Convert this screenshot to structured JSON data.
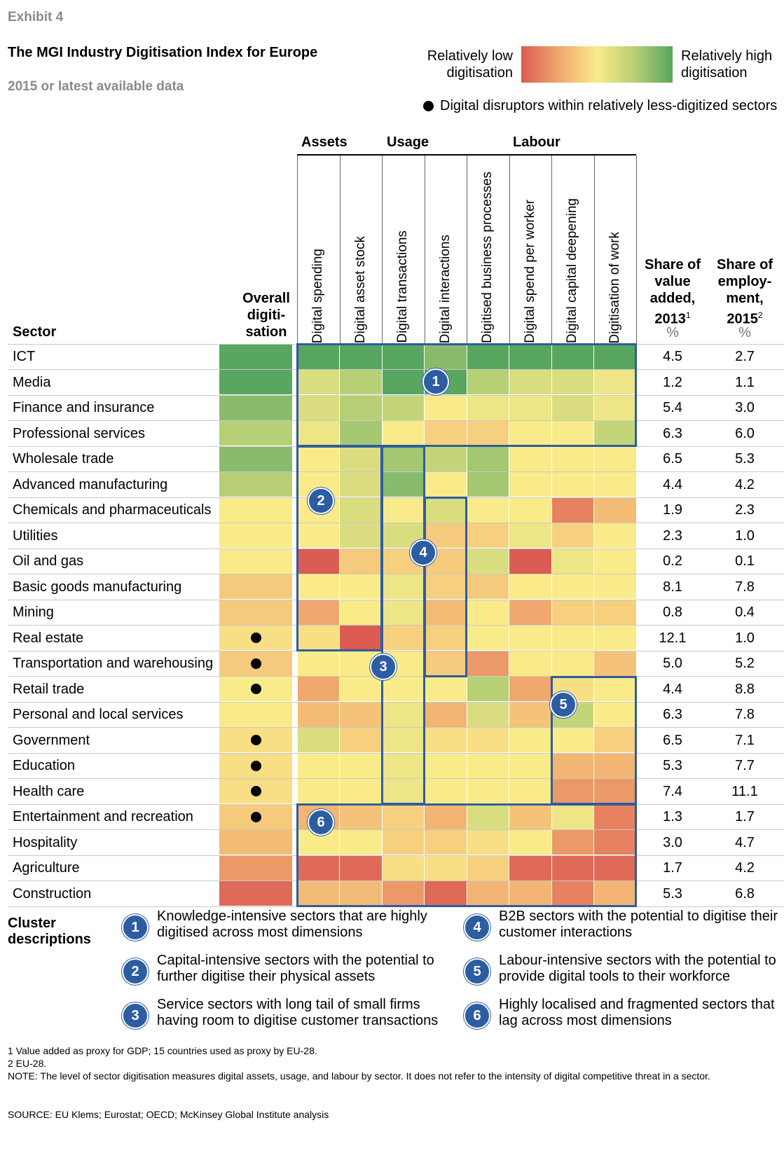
{
  "header": {
    "exhibit": "Exhibit 4",
    "title": "The MGI Industry Digitisation Index for Europe",
    "subtitle": "2015 or latest available data"
  },
  "legend": {
    "low_label": "Relatively low digitisation",
    "high_label": "Relatively high digitisation",
    "dot_label": "Digital disruptors within relatively less-digitized sectors",
    "scale_colors": [
      "#dc5b52",
      "#f0a86e",
      "#faeb8a",
      "#b7cf75",
      "#59a660"
    ]
  },
  "columns": {
    "sector": "Sector",
    "overall": "Overall digiti-sation",
    "groups": [
      "Assets",
      "Usage",
      "Labour"
    ],
    "metrics": [
      "Digital spending",
      "Digital asset stock",
      "Digital transactions",
      "Digital interactions",
      "Digitised business processes",
      "Digital spend per worker",
      "Digital capital deepening",
      "Digitisation of work"
    ],
    "share_va": "Share of value added, 2013",
    "share_va_sup": "1",
    "share_emp": "Share of employ-ment, 2015",
    "share_emp_sup": "2",
    "unit": "%"
  },
  "chart_data": {
    "type": "heatmap",
    "title": "The MGI Industry Digitisation Index for Europe",
    "subtitle": "2015 or latest available data",
    "scale": "1 = relatively low digitisation … 5 = relatively high digitisation",
    "rows": [
      {
        "sector": "ICT",
        "overall": 5,
        "metrics": [
          5,
          5,
          5,
          4.5,
          5,
          5,
          5,
          5
        ],
        "disruptor": false,
        "va": "4.5",
        "emp": "2.7"
      },
      {
        "sector": "Media",
        "overall": 5,
        "metrics": [
          3.5,
          4,
          5,
          5,
          4,
          3.5,
          3.5,
          3.2
        ],
        "disruptor": false,
        "va": "1.2",
        "emp": "1.1"
      },
      {
        "sector": "Finance and insurance",
        "overall": 4.5,
        "metrics": [
          3.5,
          4,
          3.8,
          3,
          3.2,
          3.2,
          3.5,
          3.2
        ],
        "disruptor": false,
        "va": "5.4",
        "emp": "3.0"
      },
      {
        "sector": "Professional services",
        "overall": 4,
        "metrics": [
          3.2,
          4.2,
          3,
          2.6,
          2.6,
          3,
          3,
          3.8
        ],
        "disruptor": false,
        "va": "6.3",
        "emp": "6.0"
      },
      {
        "sector": "Wholesale trade",
        "overall": 4.5,
        "metrics": [
          3,
          3.5,
          4.2,
          3.8,
          4.2,
          3,
          3,
          3
        ],
        "disruptor": false,
        "va": "6.5",
        "emp": "5.3"
      },
      {
        "sector": "Advanced manufacturing",
        "overall": 4,
        "metrics": [
          3,
          3.5,
          4.5,
          3,
          4.2,
          3,
          3,
          3
        ],
        "disruptor": false,
        "va": "4.4",
        "emp": "4.2"
      },
      {
        "sector": "Chemicals and pharmaceuticals",
        "overall": 3,
        "metrics": [
          3,
          3.5,
          3,
          3.5,
          3,
          3,
          1.5,
          2.3
        ],
        "disruptor": false,
        "va": "1.9",
        "emp": "2.3"
      },
      {
        "sector": "Utilities",
        "overall": 3,
        "metrics": [
          3,
          3.5,
          3.5,
          2.5,
          2.6,
          3.2,
          2.6,
          3
        ],
        "disruptor": false,
        "va": "2.3",
        "emp": "1.0"
      },
      {
        "sector": "Oil and gas",
        "overall": 3,
        "metrics": [
          1,
          2.5,
          2.6,
          2.5,
          3.5,
          1,
          3.2,
          3
        ],
        "disruptor": false,
        "va": "0.2",
        "emp": "0.1"
      },
      {
        "sector": "Basic goods manufacturing",
        "overall": 2.5,
        "metrics": [
          3,
          3,
          3.2,
          2.6,
          2.5,
          3,
          3,
          3
        ],
        "disruptor": false,
        "va": "8.1",
        "emp": "7.8"
      },
      {
        "sector": "Mining",
        "overall": 2.5,
        "metrics": [
          2,
          3,
          3.2,
          2.3,
          3,
          2,
          2.6,
          2.6
        ],
        "disruptor": false,
        "va": "0.8",
        "emp": "0.4"
      },
      {
        "sector": "Real estate",
        "overall": 2.8,
        "metrics": [
          2.8,
          1,
          2.6,
          2.6,
          3,
          3,
          3,
          3
        ],
        "disruptor": true,
        "va": "12.1",
        "emp": "1.0"
      },
      {
        "sector": "Transportation and warehousing",
        "overall": 2.5,
        "metrics": [
          3,
          3,
          3,
          2.5,
          1.8,
          3,
          3,
          2.4
        ],
        "disruptor": true,
        "va": "5.0",
        "emp": "5.2"
      },
      {
        "sector": "Retail trade",
        "overall": 3,
        "metrics": [
          2,
          3,
          3,
          3,
          4,
          2,
          2.8,
          3
        ],
        "disruptor": true,
        "va": "4.4",
        "emp": "8.8"
      },
      {
        "sector": "Personal and local services",
        "overall": 3,
        "metrics": [
          2.3,
          2.4,
          3.2,
          2.2,
          3.5,
          2.4,
          3.8,
          3
        ],
        "disruptor": false,
        "va": "6.3",
        "emp": "7.8"
      },
      {
        "sector": "Government",
        "overall": 2.8,
        "metrics": [
          3.5,
          2.6,
          3.2,
          2.8,
          2.8,
          3,
          3,
          2.6
        ],
        "disruptor": true,
        "va": "6.5",
        "emp": "7.1"
      },
      {
        "sector": "Education",
        "overall": 2.8,
        "metrics": [
          3,
          3,
          3.2,
          3,
          3,
          3,
          2.2,
          2.2
        ],
        "disruptor": true,
        "va": "5.3",
        "emp": "7.7"
      },
      {
        "sector": "Health care",
        "overall": 2.8,
        "metrics": [
          3,
          3,
          3.2,
          3,
          3,
          3,
          1.8,
          1.8
        ],
        "disruptor": true,
        "va": "7.4",
        "emp": "11.1"
      },
      {
        "sector": "Entertainment and recreation",
        "overall": 2.5,
        "metrics": [
          2.2,
          2.4,
          2.6,
          2.2,
          3.5,
          2.4,
          3.2,
          1.5
        ],
        "disruptor": true,
        "va": "1.3",
        "emp": "1.7"
      },
      {
        "sector": "Hospitality",
        "overall": 2.3,
        "metrics": [
          3,
          3,
          2.6,
          2.6,
          2.8,
          3,
          1.8,
          1.5
        ],
        "disruptor": false,
        "va": "3.0",
        "emp": "4.7"
      },
      {
        "sector": "Agriculture",
        "overall": 1.8,
        "metrics": [
          1.2,
          1.2,
          2.8,
          2.8,
          2.6,
          1.2,
          1.2,
          1.2
        ],
        "disruptor": false,
        "va": "1.7",
        "emp": "4.2"
      },
      {
        "sector": "Construction",
        "overall": 1.2,
        "metrics": [
          2.3,
          2.3,
          1.8,
          1.2,
          2.2,
          2.2,
          1.5,
          2.2
        ],
        "disruptor": false,
        "va": "5.3",
        "emp": "6.8"
      }
    ],
    "clusters": [
      {
        "id": "1",
        "rows": [
          0,
          3
        ],
        "cols": [
          0,
          7
        ]
      },
      {
        "id": "2",
        "rows": [
          4,
          11
        ],
        "cols": [
          0,
          1
        ]
      },
      {
        "id": "3",
        "rows": [
          4,
          17
        ],
        "cols": [
          2,
          2
        ]
      },
      {
        "id": "4",
        "rows": [
          6,
          12
        ],
        "cols": [
          3,
          3
        ]
      },
      {
        "id": "5",
        "rows": [
          13,
          17
        ],
        "cols": [
          6,
          7
        ]
      },
      {
        "id": "6",
        "rows": [
          18,
          21
        ],
        "cols": [
          0,
          7
        ]
      }
    ]
  },
  "cluster_descriptions": {
    "title": "Cluster descriptions",
    "items": [
      {
        "id": "1",
        "text": "Knowledge-intensive sectors that are highly digitised across most dimensions"
      },
      {
        "id": "2",
        "text": "Capital-intensive sectors with the potential to further digitise their physical assets"
      },
      {
        "id": "3",
        "text": "Service sectors with long tail of small firms having room to digitise customer transactions"
      },
      {
        "id": "4",
        "text": "B2B sectors with the potential to digitise their customer interactions"
      },
      {
        "id": "5",
        "text": "Labour-intensive sectors with the potential to provide digital tools to their workforce"
      },
      {
        "id": "6",
        "text": "Highly localised and fragmented sectors that lag across most dimensions"
      }
    ]
  },
  "footnotes": {
    "f1": "1  Value added as proxy for GDP; 15 countries used as proxy by EU-28.",
    "f2": "2  EU-28.",
    "note": "NOTE: The level of sector digitisation measures digital assets, usage, and labour by sector. It does not refer to the intensity of digital competitive threat in a sector.",
    "source": "SOURCE:  EU Klems; Eurostat; OECD; McKinsey Global Institute analysis"
  }
}
